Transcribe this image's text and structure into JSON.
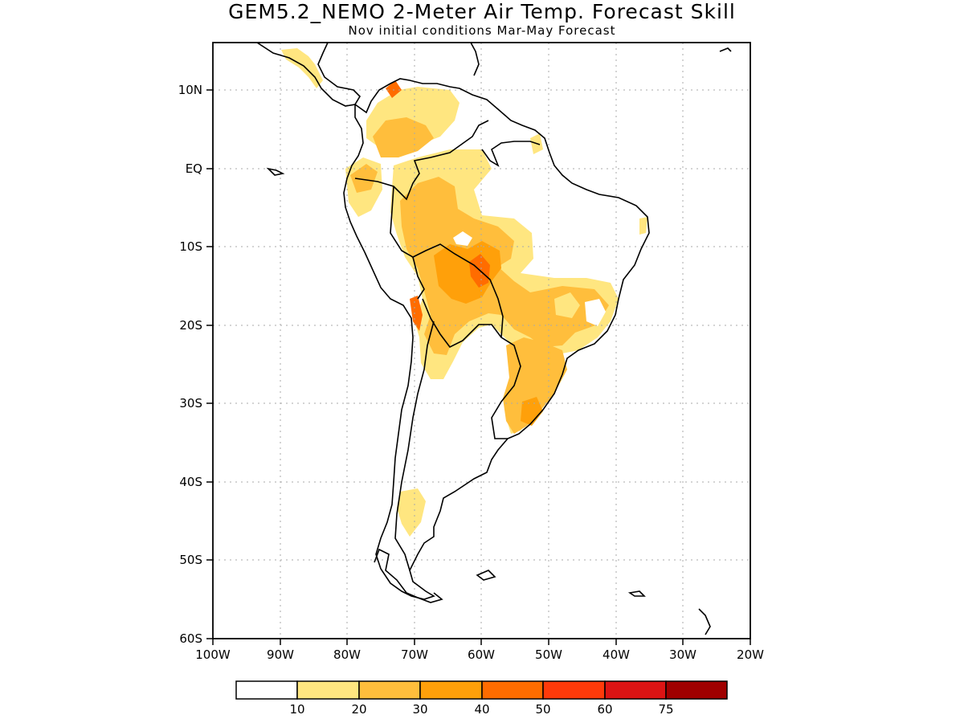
{
  "title": "GEM5.2_NEMO 2-Meter Air Temp. Forecast Skill",
  "subtitle": "Nov initial conditions  Mar-May Forecast",
  "map": {
    "lon_range": [
      -100,
      -20
    ],
    "lat_range": [
      -60,
      16
    ],
    "lon_ticks": [
      "100W",
      "90W",
      "80W",
      "70W",
      "60W",
      "50W",
      "40W",
      "30W",
      "20W"
    ],
    "lat_ticks": [
      "10N",
      "EQ",
      "10S",
      "20S",
      "30S",
      "40S",
      "50S",
      "60S"
    ],
    "grid": "dotted"
  },
  "legend": {
    "levels": [
      "10",
      "20",
      "30",
      "40",
      "50",
      "60",
      "75"
    ],
    "colors": [
      "#ffffff",
      "#ffe680",
      "#ffbe3c",
      "#ffa00a",
      "#ff6c00",
      "#ff3a0a",
      "#dc1414",
      "#a00000"
    ]
  }
}
